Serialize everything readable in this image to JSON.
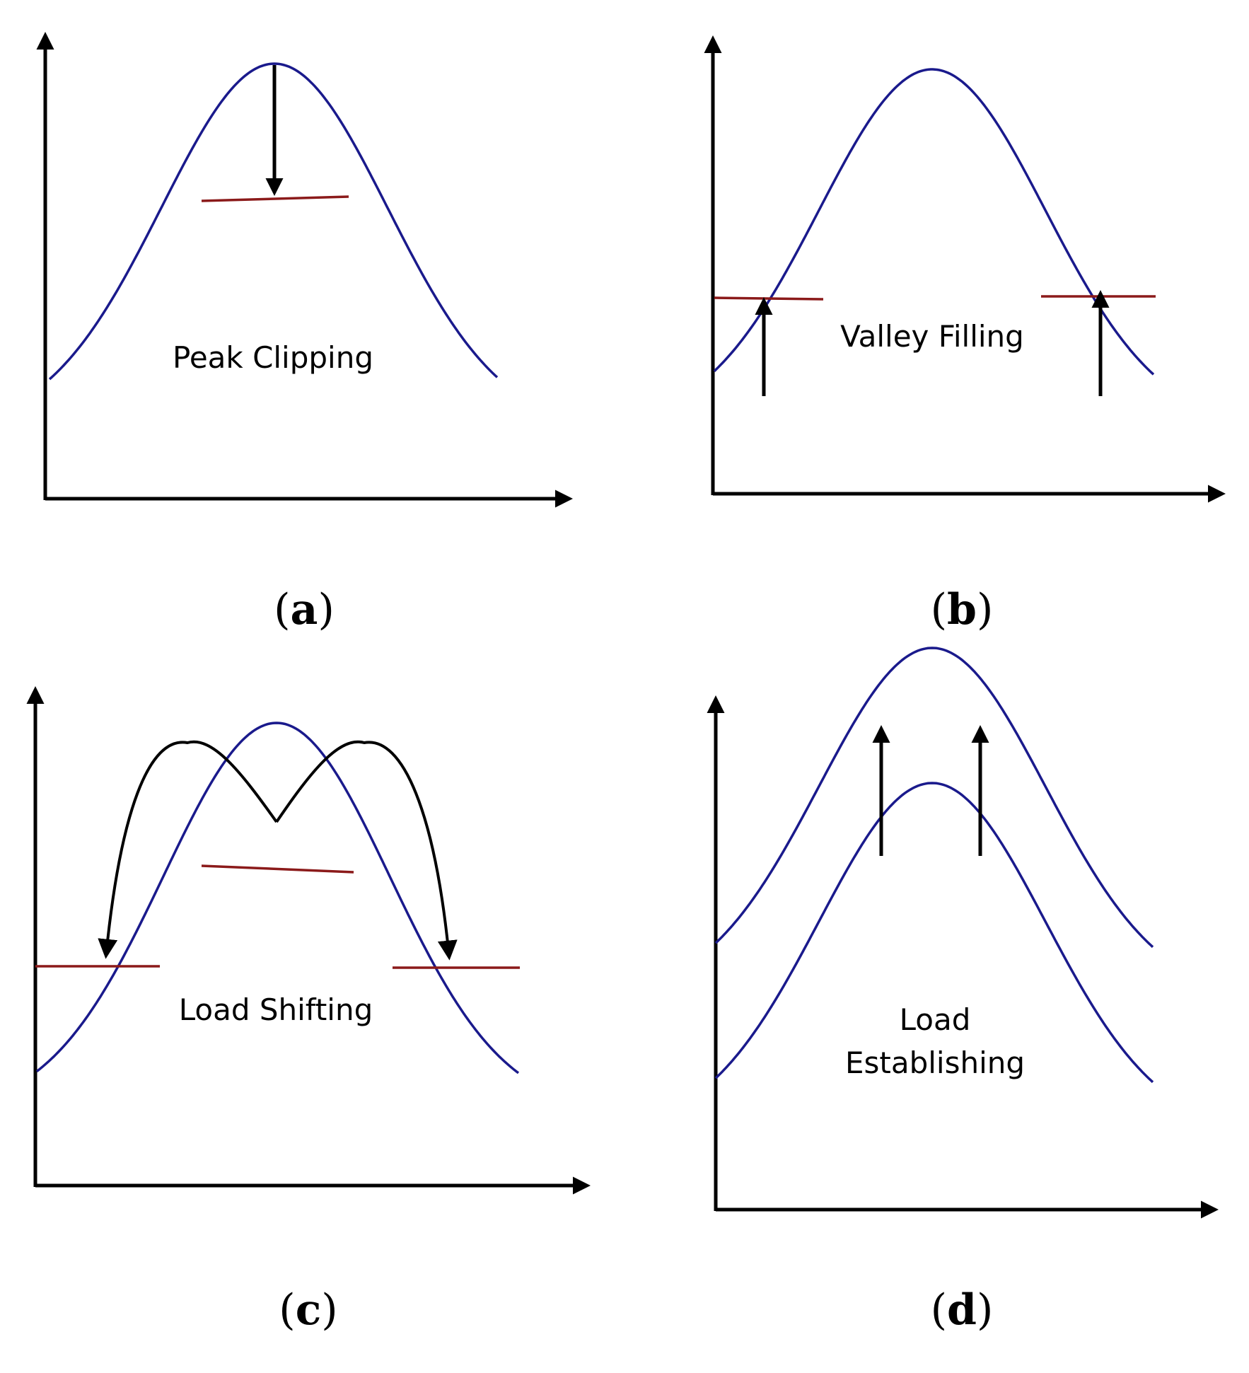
{
  "colors": {
    "curve": "#1a1a8c",
    "level": "#8b1a1a",
    "axis": "#000000",
    "arrow": "#000000"
  },
  "panels": [
    {
      "id": "a",
      "label": "a",
      "text": "Peak Clipping"
    },
    {
      "id": "b",
      "label": "b",
      "text": "Valley Filling"
    },
    {
      "id": "c",
      "label": "c",
      "text": "Load Shifting"
    },
    {
      "id": "d",
      "label": "d",
      "text_line1": "Load",
      "text_line2": "Establishing"
    }
  ]
}
